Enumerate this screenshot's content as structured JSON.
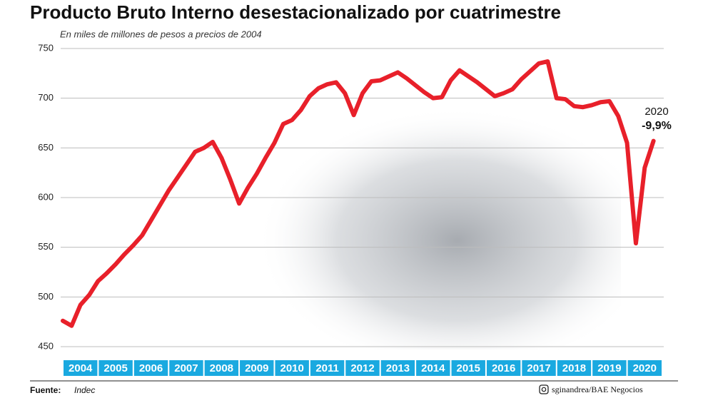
{
  "chart_data": {
    "type": "line",
    "title": "Producto Bruto Interno desestacionalizado por cuatrimestre",
    "subtitle": "En miles de millones de pesos a precios de 2004",
    "categories": [
      "2004",
      "2005",
      "2006",
      "2007",
      "2008",
      "2009",
      "2010",
      "2011",
      "2012",
      "2013",
      "2014",
      "2015",
      "2016",
      "2017",
      "2018",
      "2019",
      "2020"
    ],
    "x": [
      2004,
      2004.25,
      2004.5,
      2004.75,
      2005,
      2005.25,
      2005.5,
      2005.75,
      2006,
      2006.25,
      2006.5,
      2006.75,
      2007,
      2007.25,
      2007.5,
      2007.75,
      2008,
      2008.25,
      2008.5,
      2008.75,
      2009,
      2009.25,
      2009.5,
      2009.75,
      2010,
      2010.25,
      2010.5,
      2010.75,
      2011,
      2011.25,
      2011.5,
      2011.75,
      2012,
      2012.25,
      2012.5,
      2012.75,
      2013,
      2013.25,
      2013.5,
      2013.75,
      2014,
      2014.25,
      2014.5,
      2014.75,
      2015,
      2015.25,
      2015.5,
      2015.75,
      2016,
      2016.25,
      2016.5,
      2016.75,
      2017,
      2017.25,
      2017.5,
      2017.75,
      2018,
      2018.25,
      2018.5,
      2018.75,
      2019,
      2019.25,
      2019.5,
      2019.75,
      2020,
      2020.25,
      2020.5,
      2020.75
    ],
    "series": [
      {
        "color": "#e8202a",
        "values": [
          476,
          471,
          492,
          502,
          516,
          524,
          533,
          543,
          552,
          562,
          577,
          592,
          607,
          620,
          633,
          646,
          650,
          656,
          640,
          618,
          594,
          610,
          624,
          640,
          655,
          674,
          678,
          688,
          702,
          710,
          714,
          716,
          705,
          683,
          705,
          717,
          718,
          722,
          726,
          720,
          713,
          706,
          700,
          701,
          718,
          728,
          722,
          716,
          709,
          702,
          705,
          709,
          719,
          727,
          735,
          737,
          700,
          699,
          692,
          691,
          693,
          696,
          697,
          682,
          655,
          554,
          630,
          657
        ]
      }
    ],
    "xlim": [
      2004,
      2021
    ],
    "ylim": [
      450,
      750
    ],
    "yticks": [
      450,
      500,
      550,
      600,
      650,
      700,
      750
    ],
    "grid": true,
    "band_color": "#1aa9e0",
    "annotations": [
      {
        "text": "2020"
      },
      {
        "text": "-9,9%"
      }
    ],
    "source_label": "Fuente:",
    "source": "Indec",
    "credit": "sginandrea/BAE Negocios"
  }
}
